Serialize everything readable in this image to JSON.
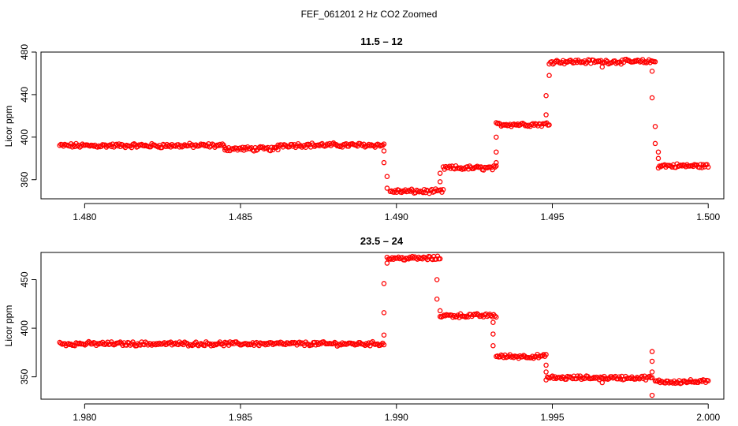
{
  "suptitle": "FEF_061201  2 Hz CO2 Zoomed",
  "colors": {
    "points": "#ff0000"
  },
  "chart_data": [
    {
      "type": "scatter",
      "title": "11.5 – 12",
      "ylabel": "Licor ppm",
      "xlim": [
        1.4786,
        1.5005
      ],
      "ylim": [
        342,
        480
      ],
      "xticks": [
        1.48,
        1.485,
        1.49,
        1.495,
        1.5
      ],
      "xtick_labels": [
        "1.480",
        "1.485",
        "1.490",
        "1.495",
        "1.500"
      ],
      "yticks": [
        360,
        400,
        440,
        480
      ],
      "ytick_labels": [
        "360",
        "400",
        "440",
        "480"
      ],
      "series": [
        {
          "segments": [
            {
              "x0": 1.4792,
              "x1": 1.4845,
              "y": 392
            },
            {
              "x0": 1.4845,
              "x1": 1.4862,
              "y": 389
            },
            {
              "x0": 1.4862,
              "x1": 1.4896,
              "y": 392.5
            },
            {
              "x0": 1.4898,
              "x1": 1.4915,
              "y": 349
            },
            {
              "x0": 1.4915,
              "x1": 1.4932,
              "y": 371
            },
            {
              "x0": 1.4932,
              "x1": 1.4949,
              "y": 412
            },
            {
              "x0": 1.4949,
              "x1": 1.4983,
              "y": 471
            },
            {
              "x0": 1.4984,
              "x1": 1.5,
              "y": 373
            }
          ],
          "transition_points": [
            [
              1.4896,
              387
            ],
            [
              1.4896,
              376
            ],
            [
              1.4897,
              363
            ],
            [
              1.4897,
              352
            ],
            [
              1.4914,
              358
            ],
            [
              1.4914,
              366
            ],
            [
              1.4932,
              376
            ],
            [
              1.4932,
              386
            ],
            [
              1.4932,
              400
            ],
            [
              1.4948,
              421
            ],
            [
              1.4948,
              439
            ],
            [
              1.4949,
              458
            ],
            [
              1.4966,
              466
            ],
            [
              1.4982,
              462
            ],
            [
              1.4982,
              437
            ],
            [
              1.4983,
              410
            ],
            [
              1.4983,
              394
            ],
            [
              1.4984,
              386
            ],
            [
              1.4984,
              380
            ]
          ]
        }
      ]
    },
    {
      "type": "scatter",
      "title": "23.5 – 24",
      "ylabel": "Licor ppm",
      "xlim": [
        1.9786,
        2.0005
      ],
      "ylim": [
        327,
        478
      ],
      "xticks": [
        1.98,
        1.985,
        1.99,
        1.995,
        2.0
      ],
      "xtick_labels": [
        "1.980",
        "1.985",
        "1.990",
        "1.995",
        "2.000"
      ],
      "yticks": [
        350,
        400,
        450
      ],
      "ytick_labels": [
        "350",
        "400",
        "450"
      ],
      "series": [
        {
          "segments": [
            {
              "x0": 1.9792,
              "x1": 1.9896,
              "y": 384
            },
            {
              "x0": 1.9897,
              "x1": 1.9914,
              "y": 472
            },
            {
              "x0": 1.9914,
              "x1": 1.9932,
              "y": 413
            },
            {
              "x0": 1.9932,
              "x1": 1.9948,
              "y": 371
            },
            {
              "x0": 1.9948,
              "x1": 1.9982,
              "y": 349
            },
            {
              "x0": 1.9983,
              "x1": 2.0,
              "y": 345
            }
          ],
          "transition_points": [
            [
              1.9896,
              393
            ],
            [
              1.9896,
              416
            ],
            [
              1.9896,
              446
            ],
            [
              1.9897,
              467
            ],
            [
              1.9913,
              450
            ],
            [
              1.9913,
              430
            ],
            [
              1.9914,
              418
            ],
            [
              1.9931,
              406
            ],
            [
              1.9931,
              394
            ],
            [
              1.9931,
              382
            ],
            [
              1.9948,
              362
            ],
            [
              1.9948,
              355
            ],
            [
              1.9966,
              344
            ],
            [
              1.9982,
              376
            ],
            [
              1.9982,
              366
            ],
            [
              1.9982,
              355
            ],
            [
              1.9982,
              331
            ]
          ]
        }
      ]
    }
  ]
}
